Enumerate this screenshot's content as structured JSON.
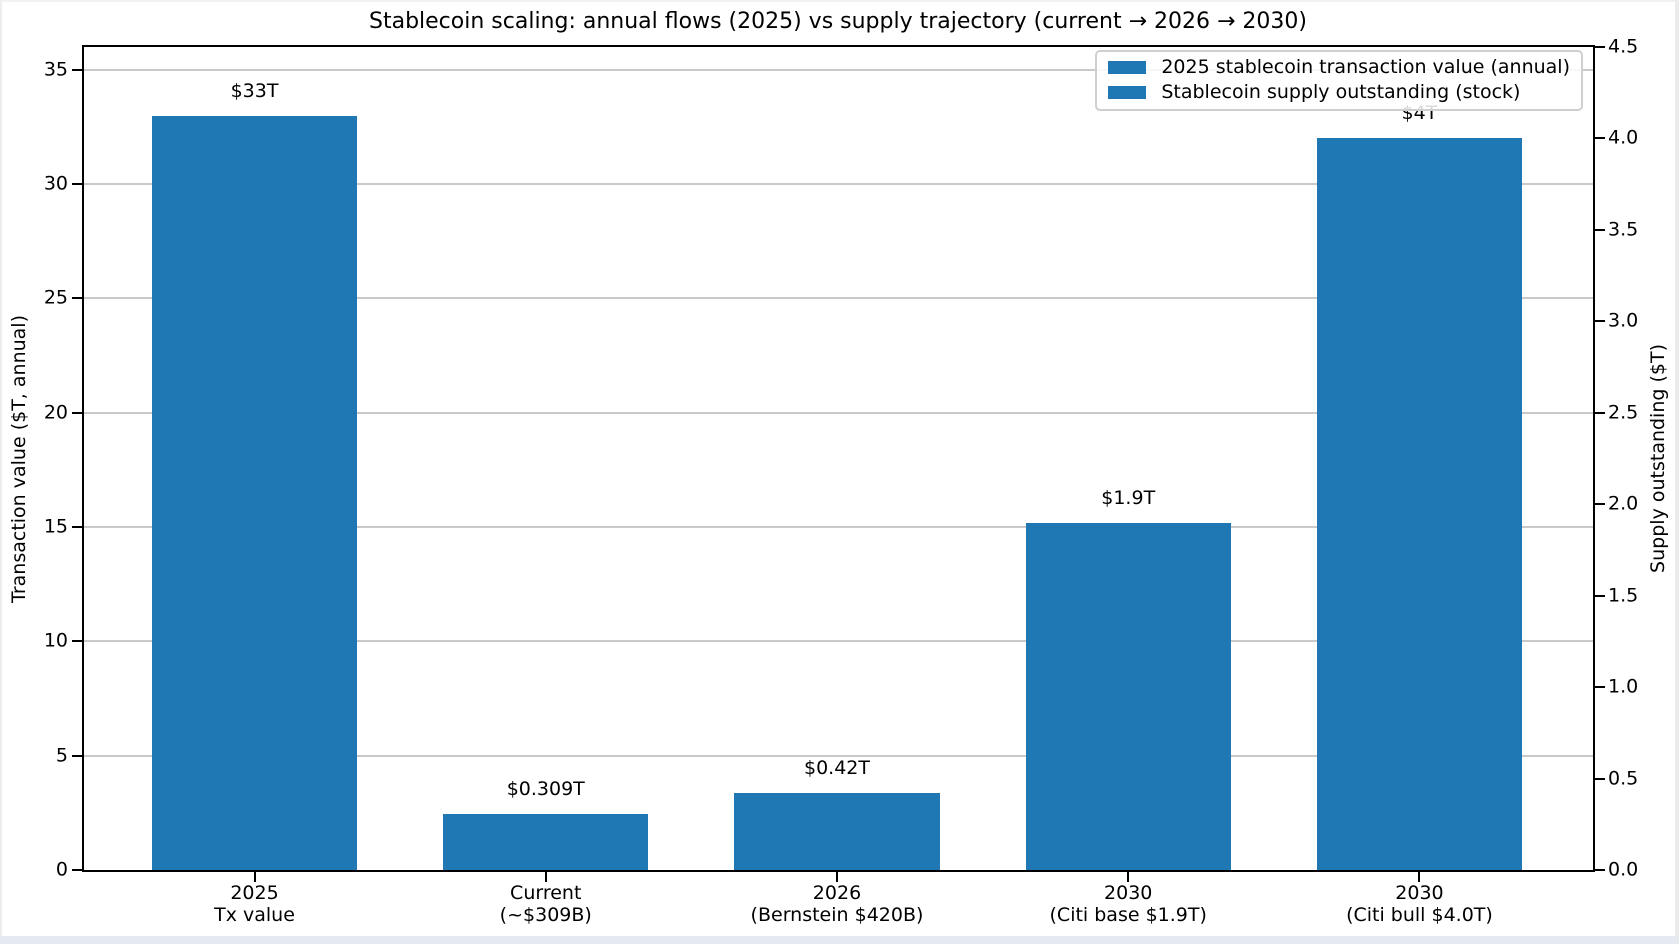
{
  "chart_data": {
    "type": "bar",
    "title": "Stablecoin scaling: annual flows (2025) vs supply trajectory (current → 2026 → 2030)",
    "grid": true,
    "bar_color": "#1f77b4",
    "left_axis": {
      "label": "Transaction value ($T, annual)",
      "ticks": [
        "0",
        "5",
        "10",
        "15",
        "20",
        "25",
        "30",
        "35"
      ],
      "range": [
        0,
        36
      ]
    },
    "right_axis": {
      "label": "Supply outstanding ($T)",
      "ticks": [
        "0.0",
        "0.5",
        "1.0",
        "1.5",
        "2.0",
        "2.5",
        "3.0",
        "3.5",
        "4.0",
        "4.5"
      ],
      "range": [
        0,
        4.5
      ]
    },
    "x_tick_labels": [
      [
        "2025",
        "Tx value"
      ],
      [
        "Current",
        "(~$309B)"
      ],
      [
        "2026",
        "(Bernstein $420B)"
      ],
      [
        "2030",
        "(Citi base $1.9T)"
      ],
      [
        "2030",
        "(Citi bull $4.0T)"
      ]
    ],
    "bars": [
      {
        "category": "2025 Tx value",
        "value": 33,
        "axis": "left",
        "data_label": "$33T",
        "series": "2025 stablecoin transaction value (annual)"
      },
      {
        "category": "Current (~$309B)",
        "value": 0.309,
        "axis": "right",
        "data_label": "$0.309T",
        "series": "Stablecoin supply outstanding (stock)"
      },
      {
        "category": "2026 (Bernstein $420B)",
        "value": 0.42,
        "axis": "right",
        "data_label": "$0.42T",
        "series": "Stablecoin supply outstanding (stock)"
      },
      {
        "category": "2030 (Citi base $1.9T)",
        "value": 1.9,
        "axis": "right",
        "data_label": "$1.9T",
        "series": "Stablecoin supply outstanding (stock)"
      },
      {
        "category": "2030 (Citi bull $4.0T)",
        "value": 4.0,
        "axis": "right",
        "data_label": "$4T",
        "series": "Stablecoin supply outstanding (stock)"
      }
    ],
    "legend": {
      "position": "upper right",
      "entries": [
        {
          "label": "2025 stablecoin transaction value (annual)",
          "color": "#1f77b4"
        },
        {
          "label": "Stablecoin supply outstanding (stock)",
          "color": "#1f77b4"
        }
      ]
    }
  }
}
